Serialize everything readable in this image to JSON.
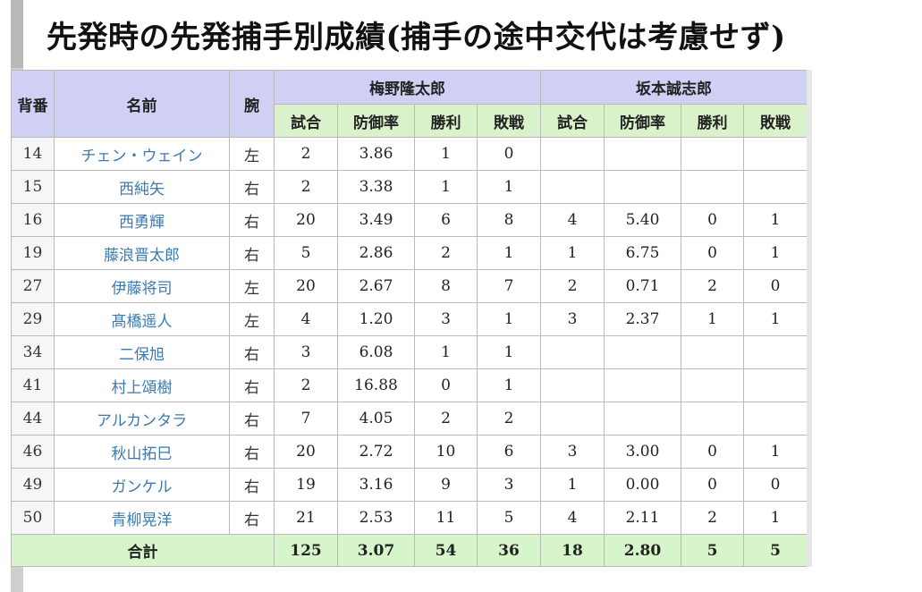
{
  "title": "先発時の先発捕手別成績(捕手の途中交代は考慮せず)",
  "columns": {
    "number": "背番",
    "name": "名前",
    "arm": "腕",
    "catchers": [
      "梅野隆太郎",
      "坂本誠志郎"
    ],
    "stats": [
      "試合",
      "防御率",
      "勝利",
      "敗戦"
    ]
  },
  "rows": [
    {
      "no": "14",
      "name": "チェン・ウェイン",
      "arm": "左",
      "c1": [
        "2",
        "3.86",
        "1",
        "0"
      ],
      "c2": [
        "",
        "",
        "",
        ""
      ]
    },
    {
      "no": "15",
      "name": "西純矢",
      "arm": "右",
      "c1": [
        "2",
        "3.38",
        "1",
        "1"
      ],
      "c2": [
        "",
        "",
        "",
        ""
      ]
    },
    {
      "no": "16",
      "name": "西勇輝",
      "arm": "右",
      "c1": [
        "20",
        "3.49",
        "6",
        "8"
      ],
      "c2": [
        "4",
        "5.40",
        "0",
        "1"
      ]
    },
    {
      "no": "19",
      "name": "藤浪晋太郎",
      "arm": "右",
      "c1": [
        "5",
        "2.86",
        "2",
        "1"
      ],
      "c2": [
        "1",
        "6.75",
        "0",
        "1"
      ]
    },
    {
      "no": "27",
      "name": "伊藤将司",
      "arm": "左",
      "c1": [
        "20",
        "2.67",
        "8",
        "7"
      ],
      "c2": [
        "2",
        "0.71",
        "2",
        "0"
      ]
    },
    {
      "no": "29",
      "name": "髙橋遥人",
      "arm": "左",
      "c1": [
        "4",
        "1.20",
        "3",
        "1"
      ],
      "c2": [
        "3",
        "2.37",
        "1",
        "1"
      ]
    },
    {
      "no": "34",
      "name": "二保旭",
      "arm": "右",
      "c1": [
        "3",
        "6.08",
        "1",
        "1"
      ],
      "c2": [
        "",
        "",
        "",
        ""
      ]
    },
    {
      "no": "41",
      "name": "村上頌樹",
      "arm": "右",
      "c1": [
        "2",
        "16.88",
        "0",
        "1"
      ],
      "c2": [
        "",
        "",
        "",
        ""
      ]
    },
    {
      "no": "44",
      "name": "アルカンタラ",
      "arm": "右",
      "c1": [
        "7",
        "4.05",
        "2",
        "2"
      ],
      "c2": [
        "",
        "",
        "",
        ""
      ]
    },
    {
      "no": "46",
      "name": "秋山拓巳",
      "arm": "右",
      "c1": [
        "20",
        "2.72",
        "10",
        "6"
      ],
      "c2": [
        "3",
        "3.00",
        "0",
        "1"
      ]
    },
    {
      "no": "49",
      "name": "ガンケル",
      "arm": "右",
      "c1": [
        "19",
        "3.16",
        "9",
        "3"
      ],
      "c2": [
        "1",
        "0.00",
        "0",
        "0"
      ]
    },
    {
      "no": "50",
      "name": "青柳晃洋",
      "arm": "右",
      "c1": [
        "21",
        "2.53",
        "11",
        "5"
      ],
      "c2": [
        "4",
        "2.11",
        "2",
        "1"
      ]
    }
  ],
  "total": {
    "label": "合計",
    "c1": [
      "125",
      "3.07",
      "54",
      "36"
    ],
    "c2": [
      "18",
      "2.80",
      "5",
      "5"
    ]
  }
}
